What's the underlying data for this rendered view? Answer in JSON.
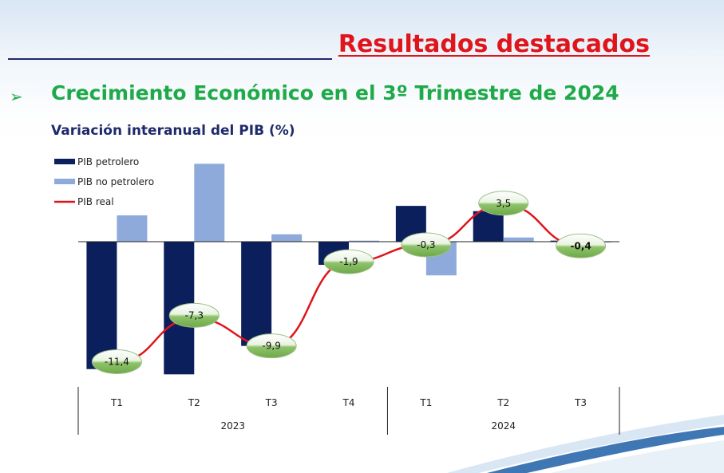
{
  "slide_title": "Resultados destacados",
  "heading": "Crecimiento Económico en el 3º Trimestre de 2024",
  "bullet_icon": "arrowhead-bullet-icon",
  "colors": {
    "title": "#e0151c",
    "heading": "#1faa4a",
    "chart_title": "#1f2a6b",
    "oil": "#0b1f5c",
    "non_oil": "#8eaadb",
    "real": "#e0151c",
    "bubble": "#8fc36a"
  },
  "chart_data": {
    "type": "bar",
    "title": "Variación interanual del PIB (%)",
    "xlabel": "",
    "ylabel": "",
    "categories": [
      "T1",
      "T2",
      "T3",
      "T4",
      "T1",
      "T2",
      "T3"
    ],
    "groups": [
      {
        "label": "2023",
        "categories": [
          "T1",
          "T2",
          "T3",
          "T4"
        ]
      },
      {
        "label": "2024",
        "categories": [
          "T1",
          "T2",
          "T3"
        ]
      }
    ],
    "ylim": [
      -13,
      8
    ],
    "grid": false,
    "legend": "top-left",
    "series": [
      {
        "name": "PIB petrolero",
        "kind": "bar",
        "color": "#0b1f5c",
        "values": [
          -12.1,
          -12.6,
          -9.9,
          -2.2,
          3.4,
          2.9,
          0.1
        ]
      },
      {
        "name": "PIB no petrolero",
        "kind": "bar",
        "color": "#8eaadb",
        "values": [
          2.5,
          7.4,
          0.7,
          0.1,
          -3.2,
          0.4,
          0.0
        ]
      },
      {
        "name": "PIB real",
        "kind": "line",
        "color": "#e0151c",
        "values": [
          -11.4,
          -7.3,
          -9.9,
          -1.9,
          -0.3,
          3.5,
          -0.4
        ],
        "labels": [
          "-11,4",
          "-7,3",
          "-9,9",
          "-1,9",
          "-0,3",
          "3,5",
          "-0,4"
        ]
      }
    ]
  }
}
